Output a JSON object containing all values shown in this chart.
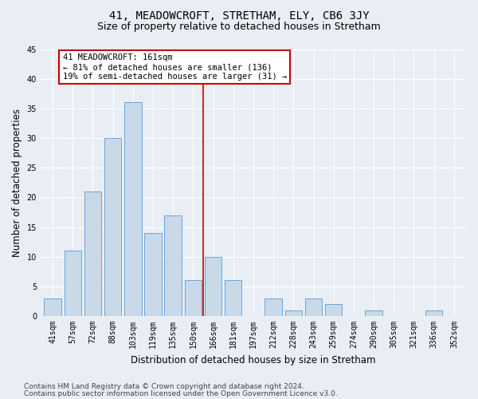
{
  "title": "41, MEADOWCROFT, STRETHAM, ELY, CB6 3JY",
  "subtitle": "Size of property relative to detached houses in Stretham",
  "xlabel": "Distribution of detached houses by size in Stretham",
  "ylabel": "Number of detached properties",
  "categories": [
    "41sqm",
    "57sqm",
    "72sqm",
    "88sqm",
    "103sqm",
    "119sqm",
    "135sqm",
    "150sqm",
    "166sqm",
    "181sqm",
    "197sqm",
    "212sqm",
    "228sqm",
    "243sqm",
    "259sqm",
    "274sqm",
    "290sqm",
    "305sqm",
    "321sqm",
    "336sqm",
    "352sqm"
  ],
  "values": [
    3,
    11,
    21,
    30,
    36,
    14,
    17,
    6,
    10,
    6,
    0,
    3,
    1,
    3,
    2,
    0,
    1,
    0,
    0,
    1,
    0
  ],
  "bar_color": "#c9d9e8",
  "bar_edge_color": "#5b9bd5",
  "vline_x": 7.5,
  "vline_color": "#cc0000",
  "annotation_text": "41 MEADOWCROFT: 161sqm\n← 81% of detached houses are smaller (136)\n19% of semi-detached houses are larger (31) →",
  "annotation_box_color": "#ffffff",
  "annotation_box_edge": "#cc0000",
  "ylim": [
    0,
    45
  ],
  "yticks": [
    0,
    5,
    10,
    15,
    20,
    25,
    30,
    35,
    40,
    45
  ],
  "footer1": "Contains HM Land Registry data © Crown copyright and database right 2024.",
  "footer2": "Contains public sector information licensed under the Open Government Licence v3.0.",
  "bg_color": "#e8eef4",
  "plot_bg_color": "#e8eef4",
  "grid_color": "#ffffff",
  "title_fontsize": 10,
  "subtitle_fontsize": 9,
  "axis_label_fontsize": 8.5,
  "tick_fontsize": 7,
  "footer_fontsize": 6.5,
  "ann_fontsize": 7.5
}
